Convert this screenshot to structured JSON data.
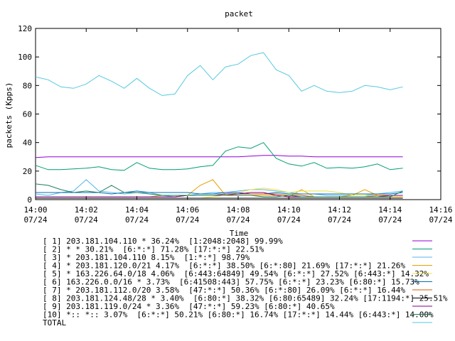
{
  "chart_data": {
    "type": "line",
    "title": "packet",
    "xlabel": "Time",
    "ylabel": "packets (Kpps)",
    "ylim": [
      0,
      120
    ],
    "yticks": [
      "0",
      "20",
      "40",
      "60",
      "80",
      "100",
      "120"
    ],
    "xticks": [
      {
        "time": "14:00",
        "date": "07/24"
      },
      {
        "time": "14:02",
        "date": "07/24"
      },
      {
        "time": "14:04",
        "date": "07/24"
      },
      {
        "time": "14:06",
        "date": "07/24"
      },
      {
        "time": "14:08",
        "date": "07/24"
      },
      {
        "time": "14:10",
        "date": "07/24"
      },
      {
        "time": "14:12",
        "date": "07/24"
      },
      {
        "time": "14:14",
        "date": "07/24"
      },
      {
        "time": "14:16",
        "date": "07/24"
      }
    ],
    "xlim": [
      "14:00",
      "14:16"
    ],
    "x": [
      "14:00",
      "14:00:30",
      "14:01",
      "14:01:30",
      "14:02",
      "14:02:30",
      "14:03",
      "14:03:30",
      "14:04",
      "14:04:30",
      "14:05",
      "14:05:30",
      "14:06",
      "14:06:30",
      "14:07",
      "14:07:30",
      "14:08",
      "14:08:30",
      "14:09",
      "14:09:30",
      "14:10",
      "14:10:30",
      "14:11",
      "14:11:30",
      "14:12",
      "14:12:30",
      "14:13",
      "14:13:30",
      "14:14",
      "14:14:30"
    ],
    "legend_position": "bottom",
    "series": [
      {
        "name": "[ 1] 203.181.104.110 * 36.24%  [1:2048:2048] 99.99%",
        "color": "#9400d3",
        "values": [
          29.5,
          30,
          30,
          30,
          30,
          30,
          30,
          30,
          30,
          30,
          30,
          30,
          30,
          30,
          30,
          30,
          30,
          30.5,
          31,
          31,
          30.5,
          30.5,
          30,
          30,
          30,
          30,
          30,
          30,
          30,
          30
        ]
      },
      {
        "name": "[ 2] * * 30.21%  [6:*:*] 71.28% [17:*:*] 22.51%",
        "color": "#009e73",
        "values": [
          24,
          21,
          21,
          21.5,
          22,
          23,
          21,
          20.5,
          26,
          22,
          21,
          21,
          21.5,
          23,
          24,
          34,
          37,
          36,
          40,
          29,
          25,
          23.5,
          26,
          22,
          22.5,
          22,
          23,
          25,
          21,
          22
        ]
      },
      {
        "name": "[ 3] * 203.181.104.110 8.15%  [1:*:*] 98.79%",
        "color": "#56b4e9",
        "values": [
          4,
          3,
          5,
          6,
          14,
          6,
          5,
          4,
          5,
          5,
          3,
          2,
          3,
          4,
          5,
          5,
          6,
          7,
          7,
          6,
          5,
          4,
          4,
          3,
          3,
          3,
          3,
          4,
          5,
          6
        ]
      },
      {
        "name": "[ 4] * 203.181.120.0/21 4.17%  [6:*:*] 38.50% [6:*:80] 21.69% [17:*:*] 21.26%",
        "color": "#e69f00",
        "values": [
          2,
          2,
          2,
          2,
          2,
          2,
          2,
          2,
          2,
          2,
          3,
          3,
          3,
          10,
          14,
          3,
          3,
          3,
          3,
          3,
          2,
          7,
          2,
          2,
          2,
          3,
          7,
          3,
          2,
          2
        ]
      },
      {
        "name": "[ 5] * 163.226.64.0/18 4.06%  [6:443:64849] 49.54% [6:*:*] 27.52% [6:443:*] 14.32%",
        "color": "#f0e442",
        "values": [
          1,
          1,
          1,
          1,
          1,
          1,
          1,
          1,
          1,
          1,
          1,
          1,
          1,
          1,
          2,
          3,
          5,
          7,
          8,
          7,
          5,
          6,
          6,
          6,
          5,
          3,
          3,
          2,
          3,
          3
        ]
      },
      {
        "name": "[ 6] 163.226.0.0/16 * 3.73%  [6:41508:443] 57.75% [6:*:*] 23.23% [6:80:*] 15.73%",
        "color": "#0072b2",
        "values": [
          5,
          5,
          5,
          5,
          5,
          5,
          4,
          5,
          6,
          5,
          5,
          5,
          5,
          4,
          4,
          5,
          5,
          4,
          4,
          5,
          4,
          4,
          4,
          4,
          4,
          4,
          4,
          4,
          4,
          5
        ]
      },
      {
        "name": "[ 7] * 203.181.112.0/20 3.58%  [47:*:*] 50.36% [6:*:80] 26.09% [6:*:*] 16.44%",
        "color": "#d55e00",
        "values": [
          2,
          2,
          2,
          2,
          2,
          2,
          2,
          2,
          2,
          2,
          2,
          2,
          3,
          3,
          3,
          3,
          4,
          4,
          4,
          4,
          3,
          3,
          2,
          2,
          2,
          2,
          2,
          3,
          3,
          3
        ]
      },
      {
        "name": "[ 8] 203.181.124.48/28 * 3.40%  [6:80:*] 38.32% [6:80:65489] 32.24% [17:1194:*] 25.51%",
        "color": "#000000",
        "values": [
          1,
          1,
          1,
          1,
          1,
          1,
          1,
          1,
          1,
          1,
          1,
          1,
          1,
          1,
          1,
          1,
          1,
          1,
          1,
          1,
          1,
          1,
          1,
          1,
          1,
          1,
          1,
          1,
          1,
          1
        ]
      },
      {
        "name": "[ 9] 203.181.119.0/24 * 3.36%  [47:*:*] 59.23% [6:80:*] 40.65%",
        "color": "#800080",
        "values": [
          2,
          2,
          2,
          2,
          2,
          2,
          2,
          2,
          2,
          2,
          2,
          2,
          3,
          3,
          3,
          4,
          4,
          5,
          5,
          3,
          2,
          2,
          2,
          2,
          2,
          2,
          2,
          2,
          3,
          3
        ]
      },
      {
        "name": "[10] *:: *:: 3.07%  [6:*:*] 50.21% [6:80:*] 16.74% [17:*:*] 14.44% [6:443:*] 14.00%",
        "color": "#1a7f5a",
        "values": [
          11,
          10,
          7,
          5,
          6,
          5,
          10,
          5,
          5,
          4,
          3,
          3,
          3,
          3,
          3,
          3,
          3,
          3,
          2,
          2,
          3,
          2,
          2,
          2,
          2,
          2,
          2,
          2,
          2,
          6
        ]
      },
      {
        "name": "TOTAL",
        "color": "#56c8e0",
        "values": [
          86,
          84,
          79,
          78,
          81,
          87,
          83,
          78,
          85,
          78,
          73,
          74,
          87,
          94,
          84,
          93,
          95,
          101,
          103,
          91,
          87,
          76,
          80,
          76,
          75,
          76,
          80,
          79,
          77,
          79
        ]
      }
    ]
  }
}
